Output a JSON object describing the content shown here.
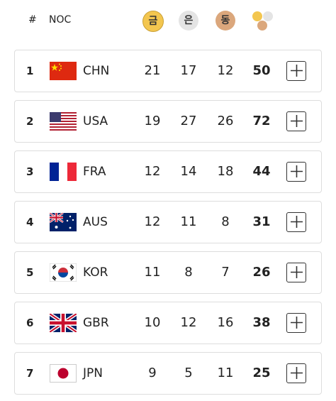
{
  "header": {
    "rank": "#",
    "noc": "NOC",
    "gold": "금",
    "silver": "은",
    "bronze": "동"
  },
  "rows": [
    {
      "rank": 1,
      "noc": "CHN",
      "gold": 21,
      "silver": 17,
      "bronze": 12,
      "total": 50
    },
    {
      "rank": 2,
      "noc": "USA",
      "gold": 19,
      "silver": 27,
      "bronze": 26,
      "total": 72
    },
    {
      "rank": 3,
      "noc": "FRA",
      "gold": 12,
      "silver": 14,
      "bronze": 18,
      "total": 44
    },
    {
      "rank": 4,
      "noc": "AUS",
      "gold": 12,
      "silver": 11,
      "bronze": 8,
      "total": 31
    },
    {
      "rank": 5,
      "noc": "KOR",
      "gold": 11,
      "silver": 8,
      "bronze": 7,
      "total": 26
    },
    {
      "rank": 6,
      "noc": "GBR",
      "gold": 10,
      "silver": 12,
      "bronze": 16,
      "total": 38
    },
    {
      "rank": 7,
      "noc": "JPN",
      "gold": 9,
      "silver": 5,
      "bronze": 11,
      "total": 25
    }
  ]
}
